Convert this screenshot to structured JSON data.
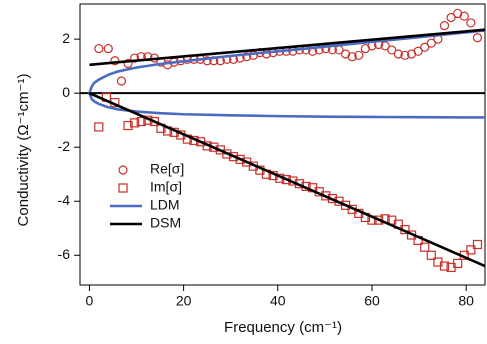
{
  "chart_data": {
    "type": "line",
    "x_label": "Frequency (cm⁻¹)",
    "y_label": "Conductivity (Ω⁻¹cm⁻¹)",
    "xlim": [
      -2,
      84
    ],
    "ylim": [
      -7.1,
      3.3
    ],
    "xticks": [
      0,
      20,
      40,
      60,
      80
    ],
    "yticks": [
      -6,
      -4,
      -2,
      0,
      2
    ],
    "legend": "upper-left",
    "series": [
      {
        "name": "Re[σ]",
        "color": "#c8302c",
        "marker": "circle",
        "x": [
          2,
          4,
          5.4,
          6.8,
          8.2,
          9.6,
          11,
          12.4,
          13.8,
          15.2,
          16.6,
          18,
          19.4,
          20.8,
          22.2,
          23.6,
          25,
          26.4,
          27.8,
          29.2,
          30.6,
          32,
          33.4,
          34.8,
          36.2,
          37.6,
          39,
          40.4,
          41.8,
          43.2,
          44.6,
          46,
          47.4,
          48.8,
          50.2,
          51.6,
          53,
          54.4,
          55.8,
          57.2,
          58.6,
          60,
          61.4,
          62.8,
          64.2,
          65.6,
          67,
          68.4,
          69.8,
          71.2,
          72.6,
          74,
          75.4,
          76.8,
          78.2,
          79.6,
          81,
          82.4
        ],
        "values": [
          1.65,
          1.65,
          1.2,
          0.45,
          1.1,
          1.3,
          1.35,
          1.35,
          1.3,
          1.15,
          1.05,
          1.15,
          1.2,
          1.25,
          1.25,
          1.25,
          1.2,
          1.2,
          1.2,
          1.25,
          1.25,
          1.3,
          1.35,
          1.4,
          1.5,
          1.45,
          1.5,
          1.55,
          1.55,
          1.55,
          1.6,
          1.6,
          1.55,
          1.6,
          1.65,
          1.6,
          1.6,
          1.45,
          1.35,
          1.4,
          1.65,
          1.75,
          1.8,
          1.75,
          1.6,
          1.45,
          1.4,
          1.45,
          1.55,
          1.7,
          1.85,
          2.0,
          2.5,
          2.8,
          2.95,
          2.85,
          2.6,
          2.05
        ]
      },
      {
        "name": "Im[σ]",
        "color": "#c8302c",
        "marker": "square",
        "x": [
          2,
          3.6,
          5.4,
          8.2,
          9.6,
          11,
          12.4,
          13.8,
          15.2,
          16.6,
          18,
          19.4,
          20.8,
          22.2,
          23.6,
          25,
          26.4,
          27.8,
          29.2,
          30.6,
          32,
          33.4,
          34.8,
          36.2,
          37.6,
          39,
          40.4,
          41.8,
          43.2,
          44.6,
          46,
          47.4,
          48.8,
          50.2,
          51.6,
          53,
          54.4,
          55.8,
          57.2,
          58.6,
          60,
          61.4,
          62.8,
          64.2,
          65.6,
          67,
          68.4,
          69.8,
          71.2,
          72.6,
          74,
          75.4,
          76.8,
          78.2,
          79.6,
          81,
          82.4
        ],
        "values": [
          -1.25,
          -0.15,
          -0.35,
          -1.2,
          -1.1,
          -1.05,
          -1.0,
          -1.05,
          -1.3,
          -1.4,
          -1.45,
          -1.55,
          -1.7,
          -1.75,
          -1.8,
          -1.95,
          -2.0,
          -2.1,
          -2.25,
          -2.35,
          -2.45,
          -2.55,
          -2.7,
          -2.85,
          -3.0,
          -3.05,
          -3.15,
          -3.2,
          -3.25,
          -3.35,
          -3.45,
          -3.5,
          -3.65,
          -3.8,
          -3.9,
          -4.0,
          -4.15,
          -4.3,
          -4.45,
          -4.6,
          -4.7,
          -4.7,
          -4.65,
          -4.7,
          -4.85,
          -5.05,
          -5.25,
          -5.45,
          -5.7,
          -6.0,
          -6.25,
          -6.4,
          -6.45,
          -6.3,
          -6.0,
          -5.8,
          -5.6
        ]
      },
      {
        "name": "LDM",
        "color": "#4a6cc0",
        "x": [
          0,
          0.5,
          1,
          2,
          4,
          6,
          10,
          15,
          20,
          30,
          40,
          50,
          60,
          70,
          80,
          84
        ],
        "values": [
          0,
          0.25,
          0.38,
          0.5,
          0.68,
          0.8,
          0.95,
          1.08,
          1.18,
          1.38,
          1.55,
          1.72,
          1.9,
          2.07,
          2.25,
          2.32
        ]
      },
      {
        "name": "DSM",
        "color": "#000000",
        "x": [
          0,
          84
        ],
        "values": [
          1.05,
          2.35
        ]
      },
      {
        "color": "#4a6cc0",
        "x": [
          0,
          0.5,
          1,
          2,
          4,
          6,
          10,
          15,
          20,
          30,
          40,
          50,
          60,
          70,
          80,
          84
        ],
        "values": [
          0,
          -0.22,
          -0.3,
          -0.4,
          -0.52,
          -0.6,
          -0.68,
          -0.74,
          -0.78,
          -0.82,
          -0.85,
          -0.87,
          -0.88,
          -0.89,
          -0.9,
          -0.9
        ]
      },
      {
        "color": "#000000",
        "x": [
          0,
          84
        ],
        "values": [
          0,
          -6.4
        ]
      }
    ]
  }
}
